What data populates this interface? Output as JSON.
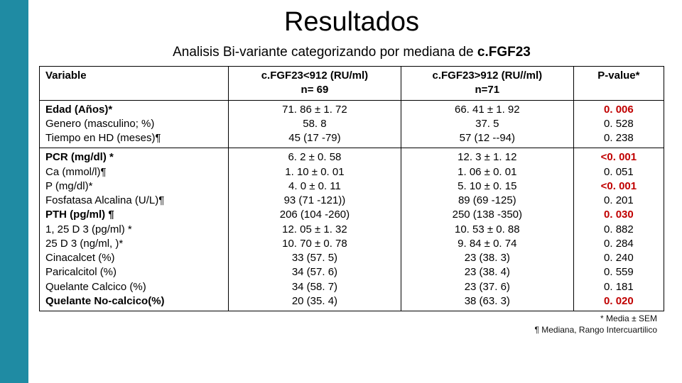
{
  "title": "Resultados",
  "subtitle_plain": "Analisis Bi-variante categorizando por mediana de ",
  "subtitle_bold": "c.FGF23",
  "headers": {
    "variable": "Variable",
    "g1_line1": "c.FGF23<912 (RU/ml)",
    "g1_line2": "n= 69",
    "g2_line1": "c.FGF23>912 (RU//ml)",
    "g2_line2": "n=71",
    "pval": "P-value*"
  },
  "block1": {
    "vars": [
      "Edad (Años)*",
      "Genero (masculino; %)",
      "Tiempo en HD (meses)¶"
    ],
    "g1": [
      "71. 86 ± 1. 72",
      "58. 8",
      "45 (17 -79)"
    ],
    "g2": [
      "66. 41 ± 1. 92",
      "37. 5",
      "57 (12 --94)"
    ],
    "p": [
      "0. 006",
      "0. 528",
      "0. 238"
    ],
    "sig": [
      true,
      false,
      false
    ]
  },
  "block2": {
    "vars": [
      "PCR (mg/dl) *",
      "Ca (mmol/l)¶",
      "P (mg/dl)*",
      "Fosfatasa Alcalina (U/L)¶",
      "PTH (pg/ml) ¶",
      "1, 25 D 3  (pg/ml) *",
      "25 D 3  (ng/ml, )*",
      "Cinacalcet (%)",
      "Paricalcitol (%)",
      "Quelante Calcico (%)",
      "Quelante No-calcico(%)"
    ],
    "g1": [
      "6. 2  ± 0. 58",
      "1. 10 ± 0. 01",
      "4. 0 ± 0. 11",
      "93 (71 -121))",
      "206 (104 -260)",
      "12. 05 ± 1. 32",
      "10. 70 ±  0. 78",
      "33 (57. 5)",
      "34 (57. 6)",
      "34 (58. 7)",
      "20 (35. 4)"
    ],
    "g2": [
      "12. 3  ± 1. 12",
      "1. 06 ± 0. 01",
      "5. 10 ± 0. 15",
      "89 (69 -125)",
      "250 (138 -350)",
      "10. 53 ± 0. 88",
      "9. 84 ±  0. 74",
      "23 (38. 3)",
      "23 (38. 4)",
      "23 (37. 6)",
      "38 (63. 3)"
    ],
    "p": [
      "<0. 001",
      "0. 051",
      "<0. 001",
      "0. 201",
      "0. 030",
      "0. 882",
      "0. 284",
      "0. 240",
      "0. 559",
      "0. 181",
      "0. 020"
    ],
    "sig": [
      true,
      false,
      true,
      false,
      true,
      false,
      false,
      false,
      false,
      false,
      true
    ]
  },
  "footnote_l1": "* Media ± SEM",
  "footnote_l2": "¶ Mediana, Rango Intercuartilico",
  "colors": {
    "accent": "#1f8ba3",
    "significant": "#c00000",
    "text": "#000000",
    "background": "#ffffff",
    "border": "#000000"
  }
}
